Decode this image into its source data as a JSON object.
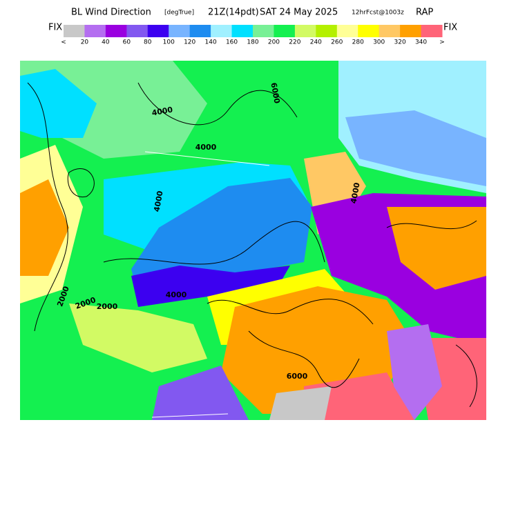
{
  "header": {
    "title": "BL Wind Direction",
    "units": "[degTrue]",
    "time": "21Z(14pdt)",
    "date": "SAT 24 May 2025",
    "forecast": "12hrFcst@1003z",
    "model": "RAP"
  },
  "colorbar": {
    "left_label": "FIX",
    "right_label": "FIX",
    "under_label": "<",
    "over_label": ">",
    "colors": [
      "#c8c8c8",
      "#b46ef0",
      "#9a00e0",
      "#8258f0",
      "#3c00f0",
      "#78b4ff",
      "#1e8cf0",
      "#a0f0ff",
      "#00e0ff",
      "#78f096",
      "#14f050",
      "#d2fa64",
      "#b4f000",
      "#ffff96",
      "#ffff00",
      "#ffc864",
      "#ffa000",
      "#ff6478"
    ],
    "ticks": [
      20,
      40,
      60,
      80,
      100,
      120,
      140,
      160,
      180,
      200,
      220,
      240,
      260,
      280,
      300,
      320,
      340
    ]
  },
  "contour_labels": [
    "4000",
    "4000",
    "2000",
    "2000",
    "4000",
    "6000",
    "4000",
    "6000",
    "2000",
    "4000"
  ]
}
